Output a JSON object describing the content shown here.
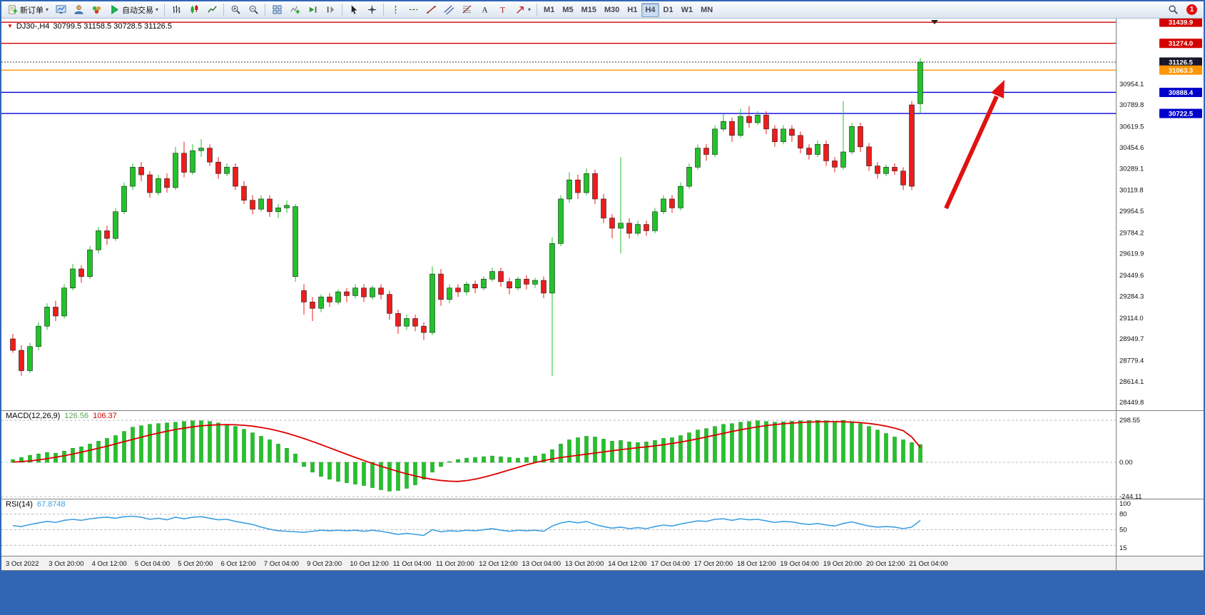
{
  "toolbar": {
    "new_order": "新订单",
    "autotrade": "自动交易",
    "timeframes": [
      "M1",
      "M5",
      "M15",
      "M30",
      "H1",
      "H4",
      "D1",
      "W1",
      "MN"
    ],
    "active_timeframe": "H4",
    "notification_count": "1"
  },
  "chart": {
    "symbol": "DJ30-,H4",
    "quote": "30799.5 31158.5 30728.5 31126.5"
  },
  "chart_data": {
    "type": "candlestick",
    "symbol": "DJ30-",
    "timeframe": "H4",
    "current": {
      "open": 30799.5,
      "high": 31158.5,
      "low": 30728.5,
      "close": 31126.5
    },
    "candles": [
      [
        28950,
        28990,
        28840,
        28860
      ],
      [
        28860,
        28900,
        28660,
        28700
      ],
      [
        28700,
        28920,
        28680,
        28890
      ],
      [
        28890,
        29080,
        28860,
        29050
      ],
      [
        29050,
        29230,
        29020,
        29200
      ],
      [
        29200,
        29250,
        29090,
        29130
      ],
      [
        29130,
        29380,
        29110,
        29350
      ],
      [
        29350,
        29540,
        29330,
        29500
      ],
      [
        29500,
        29530,
        29390,
        29440
      ],
      [
        29440,
        29680,
        29420,
        29650
      ],
      [
        29650,
        29830,
        29620,
        29800
      ],
      [
        29800,
        29840,
        29690,
        29740
      ],
      [
        29740,
        29980,
        29720,
        29950
      ],
      [
        29950,
        30180,
        29930,
        30150
      ],
      [
        30150,
        30330,
        30120,
        30300
      ],
      [
        30300,
        30340,
        30190,
        30240
      ],
      [
        30240,
        30270,
        30060,
        30100
      ],
      [
        30100,
        30240,
        30080,
        30210
      ],
      [
        30210,
        30250,
        30100,
        30140
      ],
      [
        30140,
        30460,
        30120,
        30410
      ],
      [
        30410,
        30500,
        30220,
        30260
      ],
      [
        30260,
        30480,
        30240,
        30430
      ],
      [
        30430,
        30520,
        30380,
        30450
      ],
      [
        30450,
        30480,
        30310,
        30340
      ],
      [
        30340,
        30380,
        30210,
        30250
      ],
      [
        30250,
        30330,
        30230,
        30300
      ],
      [
        30300,
        30330,
        30120,
        30150
      ],
      [
        30150,
        30190,
        30010,
        30040
      ],
      [
        30040,
        30080,
        29930,
        29970
      ],
      [
        29970,
        30080,
        29950,
        30050
      ],
      [
        30050,
        30080,
        29910,
        29950
      ],
      [
        29950,
        30010,
        29900,
        29980
      ],
      [
        29980,
        30040,
        29940,
        30000
      ],
      [
        29440,
        30010,
        29400,
        29990
      ],
      [
        29330,
        29380,
        29140,
        29240
      ],
      [
        29240,
        29280,
        29090,
        29190
      ],
      [
        29190,
        29300,
        29160,
        29280
      ],
      [
        29280,
        29310,
        29200,
        29240
      ],
      [
        29240,
        29340,
        29220,
        29320
      ],
      [
        29320,
        29350,
        29240,
        29290
      ],
      [
        29290,
        29380,
        29270,
        29350
      ],
      [
        29350,
        29380,
        29240,
        29280
      ],
      [
        29280,
        29370,
        29260,
        29350
      ],
      [
        29350,
        29380,
        29260,
        29300
      ],
      [
        29300,
        29330,
        29100,
        29150
      ],
      [
        29150,
        29180,
        28990,
        29050
      ],
      [
        29050,
        29140,
        29020,
        29110
      ],
      [
        29110,
        29140,
        29010,
        29050
      ],
      [
        29050,
        29080,
        28940,
        29000
      ],
      [
        29000,
        29520,
        28980,
        29460
      ],
      [
        29460,
        29500,
        29210,
        29260
      ],
      [
        29260,
        29380,
        29230,
        29350
      ],
      [
        29350,
        29380,
        29280,
        29320
      ],
      [
        29320,
        29400,
        29290,
        29380
      ],
      [
        29380,
        29410,
        29310,
        29350
      ],
      [
        29350,
        29440,
        29330,
        29420
      ],
      [
        29420,
        29510,
        29400,
        29480
      ],
      [
        29480,
        29510,
        29360,
        29400
      ],
      [
        29400,
        29430,
        29300,
        29350
      ],
      [
        29350,
        29440,
        29330,
        29420
      ],
      [
        29420,
        29450,
        29340,
        29380
      ],
      [
        29380,
        29430,
        29350,
        29410
      ],
      [
        29410,
        29440,
        29270,
        29310
      ],
      [
        29310,
        29750,
        28660,
        29700
      ],
      [
        29700,
        30080,
        29680,
        30050
      ],
      [
        30050,
        30260,
        30020,
        30200
      ],
      [
        30200,
        30240,
        30050,
        30100
      ],
      [
        30100,
        30290,
        30080,
        30250
      ],
      [
        30250,
        30280,
        30010,
        30050
      ],
      [
        30050,
        30090,
        29860,
        29900
      ],
      [
        29900,
        29930,
        29740,
        29820
      ],
      [
        29820,
        30380,
        29620,
        29860
      ],
      [
        29860,
        29900,
        29740,
        29780
      ],
      [
        29780,
        29880,
        29760,
        29850
      ],
      [
        29850,
        29880,
        29760,
        29800
      ],
      [
        29800,
        29980,
        29780,
        29950
      ],
      [
        29950,
        30080,
        29930,
        30050
      ],
      [
        30050,
        30080,
        29940,
        29980
      ],
      [
        29980,
        30180,
        29960,
        30150
      ],
      [
        30150,
        30330,
        30130,
        30300
      ],
      [
        30300,
        30480,
        30280,
        30450
      ],
      [
        30450,
        30480,
        30350,
        30400
      ],
      [
        30400,
        30630,
        30380,
        30600
      ],
      [
        30600,
        30720,
        30580,
        30660
      ],
      [
        30660,
        30690,
        30500,
        30550
      ],
      [
        30550,
        30760,
        30530,
        30700
      ],
      [
        30700,
        30780,
        30610,
        30650
      ],
      [
        30650,
        30740,
        30630,
        30710
      ],
      [
        30710,
        30740,
        30560,
        30600
      ],
      [
        30600,
        30630,
        30460,
        30500
      ],
      [
        30500,
        30630,
        30480,
        30600
      ],
      [
        30600,
        30630,
        30500,
        30550
      ],
      [
        30550,
        30580,
        30410,
        30450
      ],
      [
        30450,
        30480,
        30360,
        30400
      ],
      [
        30400,
        30510,
        30380,
        30480
      ],
      [
        30480,
        30510,
        30310,
        30350
      ],
      [
        30350,
        30380,
        30260,
        30300
      ],
      [
        30300,
        30820,
        30280,
        30420
      ],
      [
        30420,
        30650,
        30400,
        30620
      ],
      [
        30620,
        30650,
        30420,
        30460
      ],
      [
        30460,
        30490,
        30270,
        30310
      ],
      [
        30310,
        30340,
        30210,
        30250
      ],
      [
        30250,
        30320,
        30230,
        30300
      ],
      [
        30300,
        30330,
        30240,
        30270
      ],
      [
        30270,
        30300,
        30120,
        30160
      ],
      [
        30790,
        30820,
        30120,
        30150
      ],
      [
        30799.5,
        31158.5,
        30728.5,
        31126.5
      ]
    ],
    "price_lines": [
      {
        "price": 31439.9,
        "label": "31439.9",
        "color": "#d40000",
        "style": "solid",
        "badge": "#d40000"
      },
      {
        "price": 31274.0,
        "label": "31274.0",
        "color": "#d40000",
        "style": "solid",
        "badge": "#d40000"
      },
      {
        "price": 31126.5,
        "label": "31126.5",
        "color": "#3a3a4a",
        "style": "dotted",
        "badge": "#17172b"
      },
      {
        "price": 31063.3,
        "label": "31063.3",
        "color": "#ff9500",
        "style": "solid",
        "badge": "#ff9500"
      },
      {
        "price": 30888.4,
        "label": "30888.4",
        "color": "#0000e0",
        "style": "solid",
        "badge": "#0000cc"
      },
      {
        "price": 30722.5,
        "label": "30722.5",
        "color": "#0000e0",
        "style": "solid",
        "badge": "#0000cc"
      }
    ],
    "price_axis_labels": [
      "30954.1",
      "30789.8",
      "30619.5",
      "30454.6",
      "30289.1",
      "30119.8",
      "29954.5",
      "29784.2",
      "29619.9",
      "29449.6",
      "29284.3",
      "29114.0",
      "28949.7",
      "28779.4",
      "28614.1",
      "28449.8"
    ],
    "time_labels": [
      "3 Oct 2022",
      "3 Oct 20:00",
      "4 Oct 12:00",
      "5 Oct 04:00",
      "5 Oct 20:00",
      "6 Oct 12:00",
      "7 Oct 04:00",
      "9 Oct 23:00",
      "10 Oct 12:00",
      "11 Oct 04:00",
      "11 Oct 20:00",
      "12 Oct 12:00",
      "13 Oct 04:00",
      "13 Oct 20:00",
      "14 Oct 12:00",
      "17 Oct 04:00",
      "17 Oct 20:00",
      "18 Oct 12:00",
      "19 Oct 04:00",
      "19 Oct 20:00",
      "20 Oct 12:00",
      "21 Oct 04:00"
    ],
    "macd": {
      "label": "MACD(12,26,9)",
      "value_main": "126.56",
      "value_signal": "106.37",
      "axis": [
        "298.55",
        "0.00",
        "-244.11"
      ],
      "histogram": [
        20,
        35,
        50,
        60,
        70,
        65,
        80,
        100,
        110,
        130,
        150,
        170,
        190,
        220,
        250,
        260,
        270,
        275,
        280,
        285,
        290,
        295,
        295,
        290,
        280,
        270,
        255,
        235,
        210,
        185,
        160,
        130,
        100,
        60,
        -30,
        -70,
        -100,
        -120,
        -135,
        -145,
        -155,
        -165,
        -180,
        -195,
        -205,
        -200,
        -185,
        -160,
        -120,
        -70,
        -30,
        5,
        20,
        30,
        35,
        40,
        45,
        40,
        35,
        30,
        35,
        45,
        60,
        90,
        130,
        160,
        175,
        185,
        180,
        165,
        150,
        155,
        145,
        140,
        145,
        155,
        170,
        175,
        190,
        210,
        230,
        240,
        255,
        270,
        275,
        285,
        290,
        295,
        290,
        285,
        288,
        292,
        295,
        297,
        298,
        295,
        290,
        298,
        290,
        275,
        255,
        230,
        205,
        180,
        160,
        140,
        126.56
      ],
      "signal": [
        2,
        5,
        10,
        17,
        26,
        36,
        47,
        59,
        72,
        86,
        100,
        115,
        131,
        147,
        163,
        179,
        194,
        208,
        221,
        233,
        243,
        252,
        259,
        264,
        267,
        268,
        267,
        263,
        257,
        248,
        237,
        223,
        207,
        189,
        169,
        148,
        126,
        103,
        80,
        57,
        35,
        13,
        -8,
        -28,
        -47,
        -65,
        -82,
        -97,
        -110,
        -121,
        -129,
        -134,
        -136,
        -130,
        -120,
        -106,
        -90,
        -72,
        -54,
        -36,
        -18,
        -2,
        12,
        24,
        34,
        42,
        50,
        58,
        66,
        74,
        82,
        90,
        97,
        104,
        110,
        117,
        125,
        134,
        144,
        155,
        167,
        180,
        193,
        206,
        219,
        231,
        242,
        252,
        261,
        268,
        274,
        279,
        283,
        286,
        288,
        289,
        289,
        288,
        286,
        282,
        276,
        268,
        257,
        243,
        225,
        180,
        106.37
      ],
      "colors": {
        "histogram": "#22c32a",
        "signal": "#dd0000"
      }
    },
    "rsi": {
      "label": "RSI(14)",
      "value": "67.8748",
      "axis": [
        "100",
        "80",
        "50",
        "15"
      ],
      "levels": [
        80,
        50,
        20
      ],
      "color": "#3d9fe0",
      "values": [
        58,
        56,
        60,
        63,
        66,
        64,
        68,
        70,
        68,
        71,
        73,
        74,
        72,
        75,
        76,
        74,
        70,
        72,
        69,
        74,
        71,
        74,
        75,
        72,
        69,
        70,
        66,
        63,
        60,
        55,
        51,
        48,
        47,
        46,
        45,
        47,
        49,
        48,
        49,
        48,
        49,
        47,
        49,
        47,
        44,
        41,
        43,
        41,
        39,
        50,
        46,
        48,
        47,
        49,
        48,
        50,
        52,
        49,
        47,
        49,
        48,
        49,
        47,
        57,
        63,
        66,
        63,
        66,
        60,
        56,
        53,
        55,
        52,
        54,
        52,
        56,
        59,
        57,
        61,
        64,
        67,
        66,
        70,
        71,
        68,
        71,
        69,
        70,
        67,
        64,
        66,
        65,
        62,
        60,
        62,
        59,
        57,
        62,
        65,
        61,
        57,
        55,
        56,
        55,
        52,
        55,
        67.87
      ]
    },
    "annotations": [
      {
        "type": "arrow",
        "direction": "up-right",
        "color": "#e01212"
      }
    ],
    "candle_colors": {
      "bull": "#22c32a",
      "bear": "#ee1c1c"
    }
  }
}
